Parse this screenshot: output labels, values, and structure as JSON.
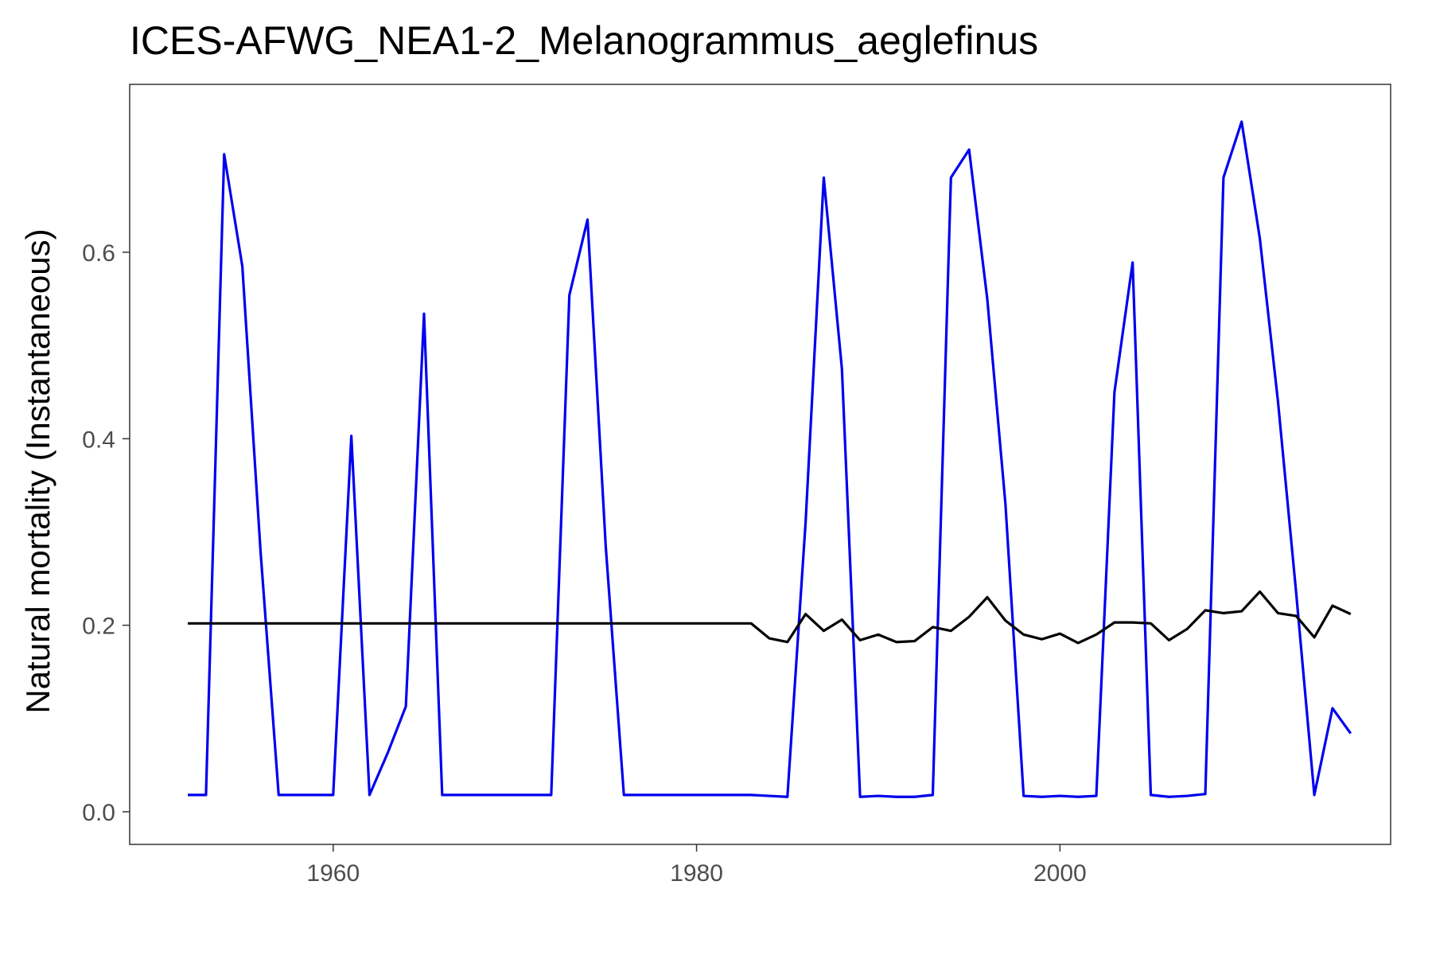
{
  "chart_data": {
    "type": "line",
    "title": "ICES-AFWG_NEA1-2_Melanogrammus_aeglefinus",
    "xlabel": "",
    "ylabel": "Natural mortality (Instantaneous)",
    "xlim": [
      1948.8,
      2018.2
    ],
    "ylim": [
      -0.035,
      0.78
    ],
    "x_ticks": [
      {
        "value": 1960,
        "label": "1960"
      },
      {
        "value": 1980,
        "label": "1980"
      },
      {
        "value": 2000,
        "label": "2000"
      }
    ],
    "y_ticks": [
      {
        "value": 0.0,
        "label": "0.0"
      },
      {
        "value": 0.2,
        "label": "0.2"
      },
      {
        "value": 0.4,
        "label": "0.4"
      },
      {
        "value": 0.6,
        "label": "0.6"
      }
    ],
    "grid": false,
    "legend": "none",
    "x": [
      1952,
      1953,
      1954,
      1955,
      1956,
      1957,
      1958,
      1959,
      1960,
      1961,
      1962,
      1963,
      1964,
      1965,
      1966,
      1967,
      1968,
      1969,
      1970,
      1971,
      1972,
      1973,
      1974,
      1975,
      1976,
      1977,
      1978,
      1979,
      1980,
      1981,
      1982,
      1983,
      1984,
      1985,
      1986,
      1987,
      1988,
      1989,
      1990,
      1991,
      1992,
      1993,
      1994,
      1995,
      1996,
      1997,
      1998,
      1999,
      2000,
      2001,
      2002,
      2003,
      2004,
      2005,
      2006,
      2007,
      2008,
      2009,
      2010,
      2011,
      2012,
      2013,
      2014,
      2015,
      2016
    ],
    "series": [
      {
        "color": "#0000ee",
        "values": [
          0.018,
          0.018,
          0.705,
          0.585,
          0.28,
          0.018,
          0.018,
          0.018,
          0.018,
          0.403,
          0.018,
          0.063,
          0.113,
          0.534,
          0.018,
          0.018,
          0.018,
          0.018,
          0.018,
          0.018,
          0.018,
          0.554,
          0.635,
          0.285,
          0.018,
          0.018,
          0.018,
          0.018,
          0.018,
          0.018,
          0.018,
          0.018,
          0.017,
          0.016,
          0.31,
          0.68,
          0.475,
          0.016,
          0.017,
          0.016,
          0.016,
          0.018,
          0.68,
          0.71,
          0.55,
          0.33,
          0.017,
          0.016,
          0.017,
          0.016,
          0.017,
          0.45,
          0.589,
          0.018,
          0.016,
          0.017,
          0.019,
          0.68,
          0.74,
          0.615,
          0.44,
          0.235,
          0.018,
          0.111,
          0.084
        ]
      },
      {
        "color": "#000000",
        "values": [
          0.202,
          0.202,
          0.202,
          0.202,
          0.202,
          0.202,
          0.202,
          0.202,
          0.202,
          0.202,
          0.202,
          0.202,
          0.202,
          0.202,
          0.202,
          0.202,
          0.202,
          0.202,
          0.202,
          0.202,
          0.202,
          0.202,
          0.202,
          0.202,
          0.202,
          0.202,
          0.202,
          0.202,
          0.202,
          0.202,
          0.202,
          0.202,
          0.186,
          0.182,
          0.212,
          0.194,
          0.206,
          0.184,
          0.19,
          0.182,
          0.183,
          0.198,
          0.194,
          0.209,
          0.23,
          0.205,
          0.19,
          0.185,
          0.191,
          0.181,
          0.19,
          0.203,
          0.203,
          0.202,
          0.184,
          0.196,
          0.216,
          0.213,
          0.215,
          0.236,
          0.213,
          0.21,
          0.187,
          0.221,
          0.212
        ]
      }
    ]
  }
}
